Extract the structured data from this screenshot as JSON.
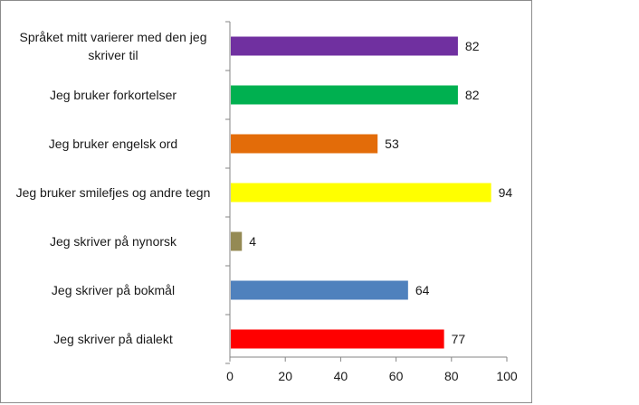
{
  "chart_data": {
    "type": "bar",
    "orientation": "horizontal",
    "categories": [
      [
        "Språket mitt varierer med den jeg",
        "skriver til"
      ],
      [
        "Jeg bruker forkortelser"
      ],
      [
        "Jeg bruker engelsk ord"
      ],
      [
        "Jeg bruker smilefjes og andre tegn"
      ],
      [
        "Jeg skriver på nynorsk"
      ],
      [
        "Jeg skriver på bokmål"
      ],
      [
        "Jeg skriver på dialekt"
      ]
    ],
    "values": [
      82,
      82,
      53,
      94,
      4,
      64,
      77
    ],
    "colors": [
      "#7030a0",
      "#00b050",
      "#e36c09",
      "#ffff00",
      "#948a54",
      "#4f81bd",
      "#ff0000"
    ],
    "xlim": [
      0,
      100
    ],
    "xticks": [
      0,
      20,
      40,
      60,
      80,
      100
    ],
    "title": "",
    "xlabel": "",
    "ylabel": "",
    "grid": false,
    "legend": "none"
  }
}
